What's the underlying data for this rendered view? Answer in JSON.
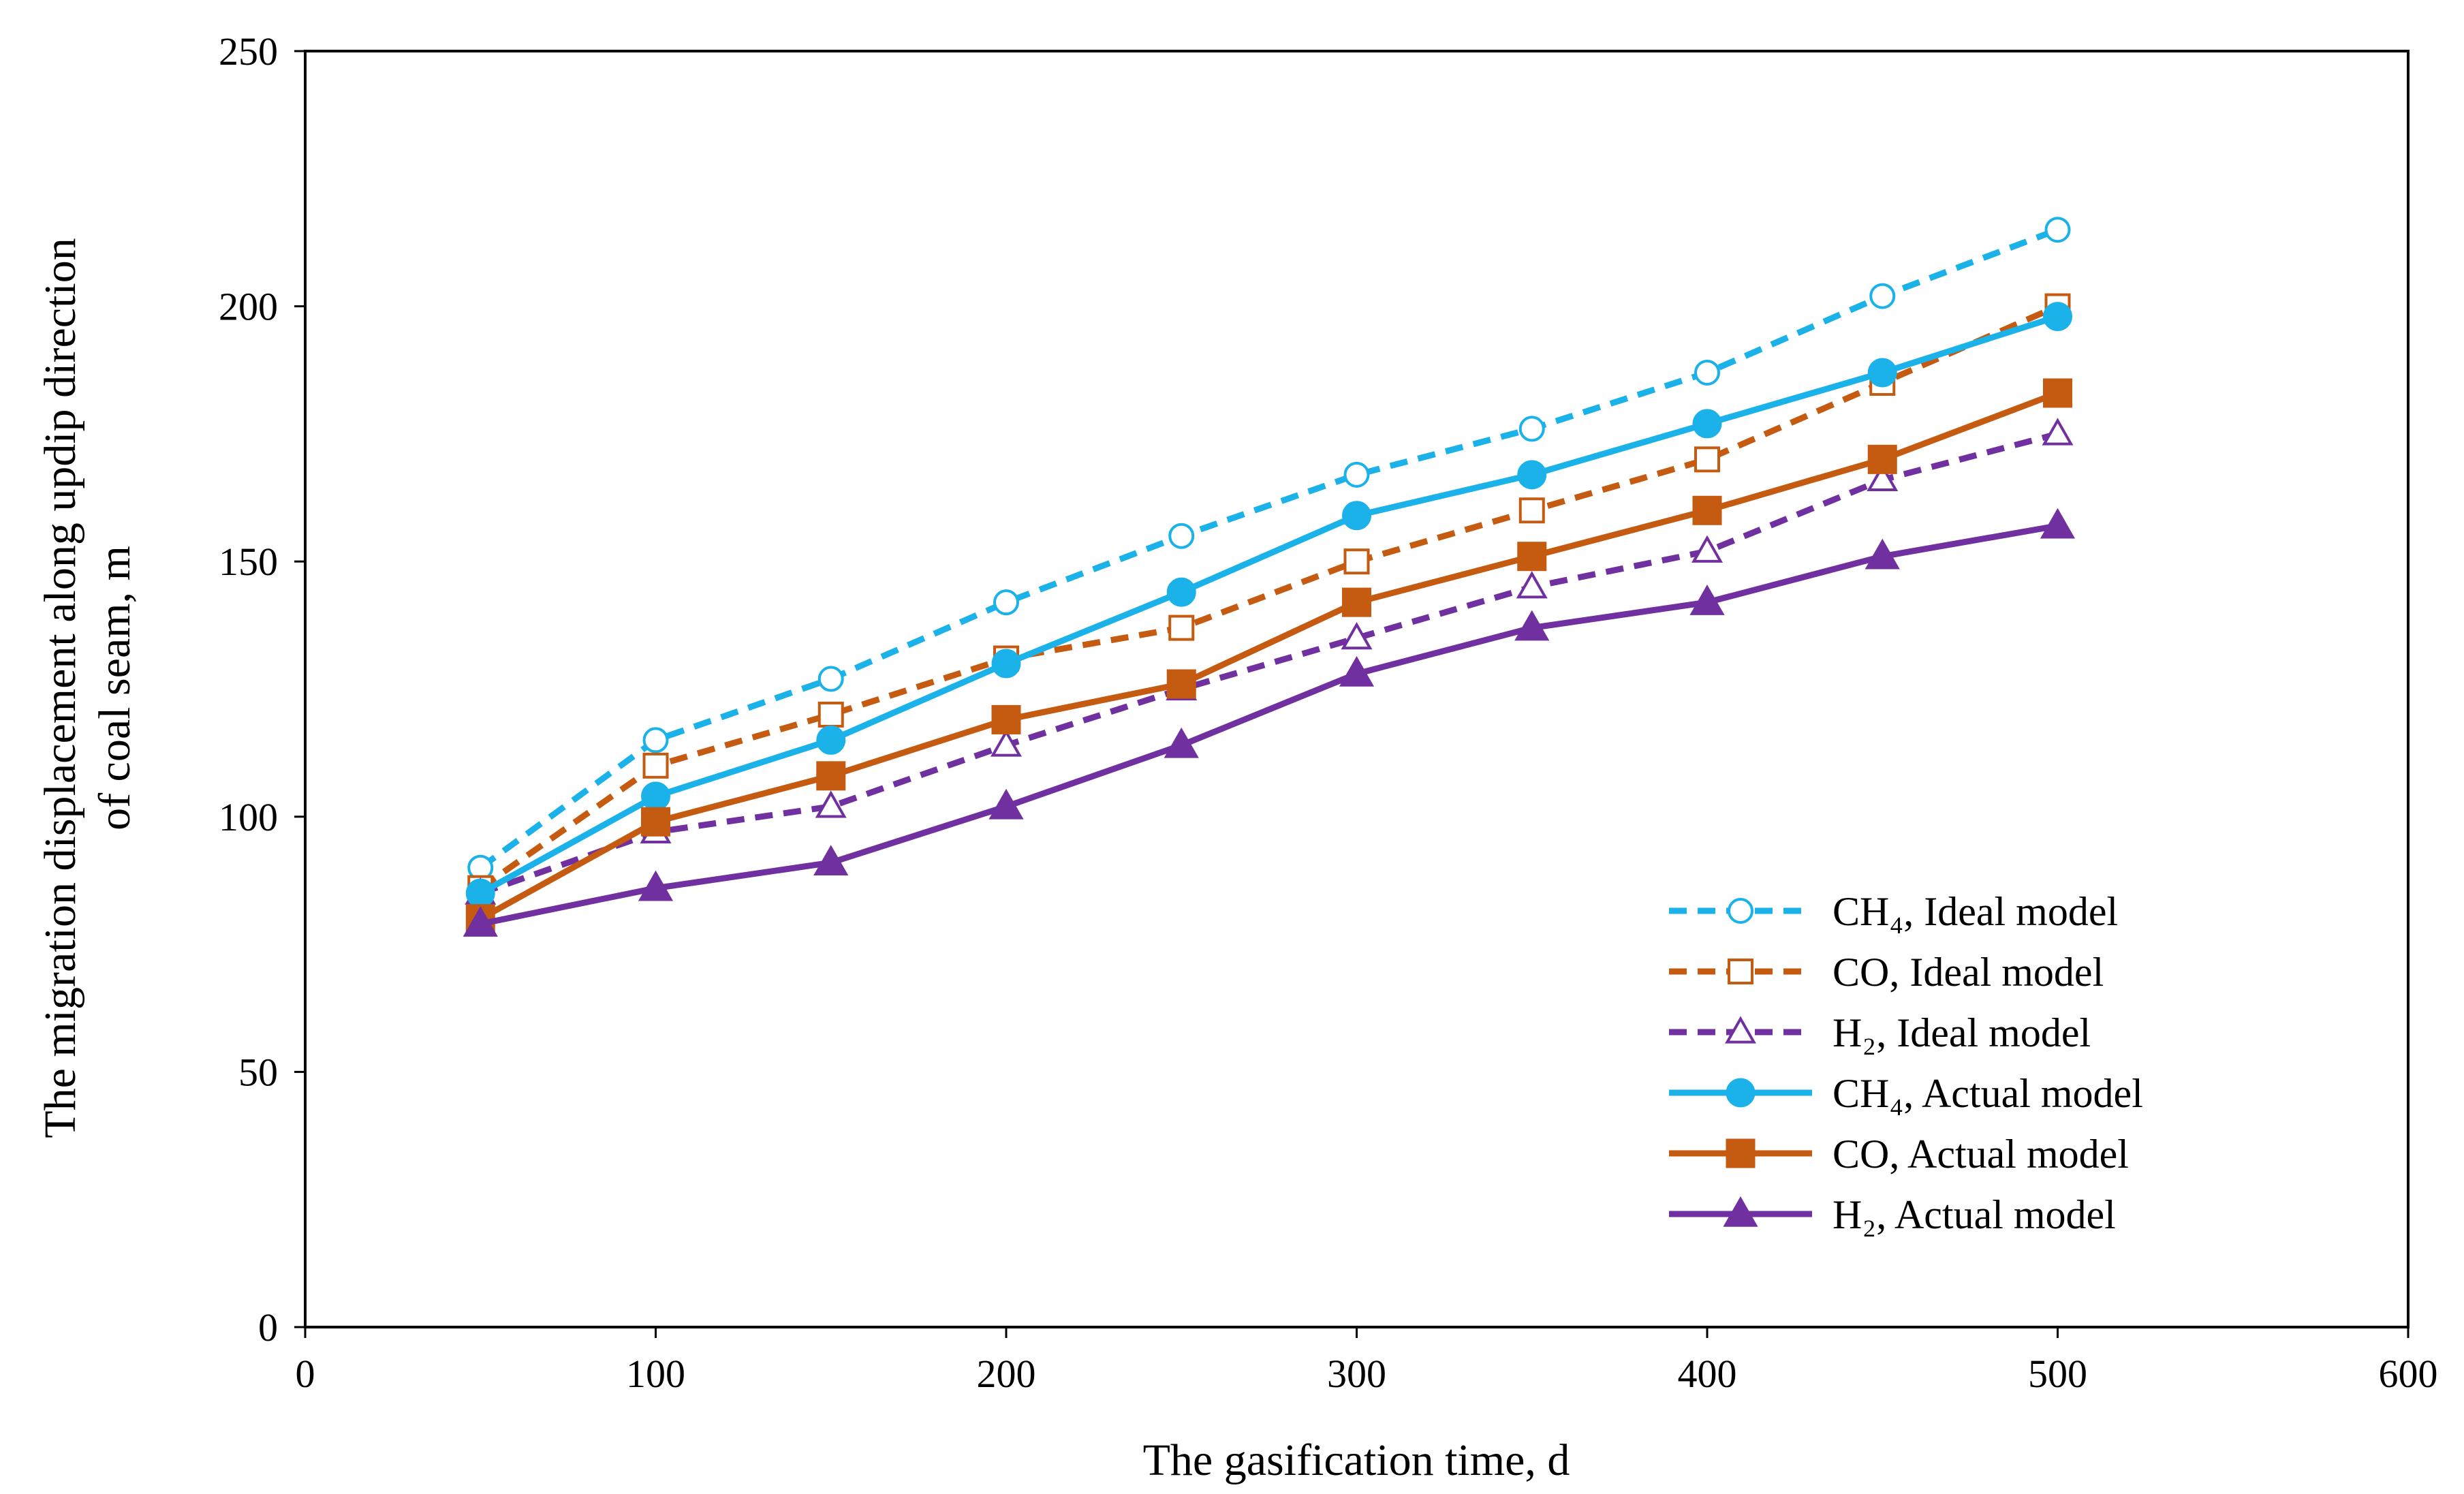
{
  "chart_data": {
    "type": "line",
    "title": "",
    "xlabel": "The gasification time, d",
    "ylabel_lines": [
      "The migration displacement along updip direction",
      "of coal seam, m"
    ],
    "xlim": [
      0,
      600
    ],
    "ylim": [
      0,
      250
    ],
    "x_ticks": [
      0,
      100,
      200,
      300,
      400,
      500,
      600
    ],
    "y_ticks": [
      0,
      50,
      100,
      150,
      200,
      250
    ],
    "x_tick_labels": [
      "0",
      "100",
      "200",
      "300",
      "400",
      "500",
      "600"
    ],
    "y_tick_labels": [
      "0",
      "50",
      "100",
      "150",
      "200",
      "250"
    ],
    "grid": false,
    "legend_position": "bottom-right",
    "x": [
      50,
      100,
      150,
      200,
      250,
      300,
      350,
      400,
      450,
      500
    ],
    "series": [
      {
        "id": "ch4-ideal",
        "name": "CH₄, Ideal model",
        "color": "#1ab2e8",
        "dash": "dashed",
        "marker": "circle",
        "filled": false,
        "values": [
          90,
          115,
          127,
          142,
          155,
          167,
          176,
          187,
          202,
          215
        ]
      },
      {
        "id": "co-ideal",
        "name": "CO, Ideal model",
        "color": "#c55a11",
        "dash": "dashed",
        "marker": "square",
        "filled": false,
        "values": [
          86,
          110,
          120,
          131,
          137,
          150,
          160,
          170,
          185,
          200
        ]
      },
      {
        "id": "h2-ideal",
        "name": "H₂, Ideal model",
        "color": "#7030a0",
        "dash": "dashed",
        "marker": "triangle",
        "filled": false,
        "values": [
          85,
          97,
          102,
          114,
          125,
          135,
          145,
          152,
          166,
          175
        ]
      },
      {
        "id": "ch4-actual",
        "name": "CH₄, Actual model",
        "color": "#1ab2e8",
        "dash": "solid",
        "marker": "circle",
        "filled": true,
        "values": [
          85,
          104,
          115,
          130,
          144,
          159,
          167,
          177,
          187,
          198
        ]
      },
      {
        "id": "co-actual",
        "name": "CO, Actual  model",
        "color": "#c55a11",
        "dash": "solid",
        "marker": "square",
        "filled": true,
        "values": [
          80,
          99,
          108,
          119,
          126,
          142,
          151,
          160,
          170,
          183
        ]
      },
      {
        "id": "h2-actual",
        "name": "H₂, Actual model",
        "color": "#7030a0",
        "dash": "solid",
        "marker": "triangle",
        "filled": true,
        "values": [
          79,
          86,
          91,
          102,
          114,
          128,
          137,
          142,
          151,
          157
        ]
      }
    ]
  }
}
